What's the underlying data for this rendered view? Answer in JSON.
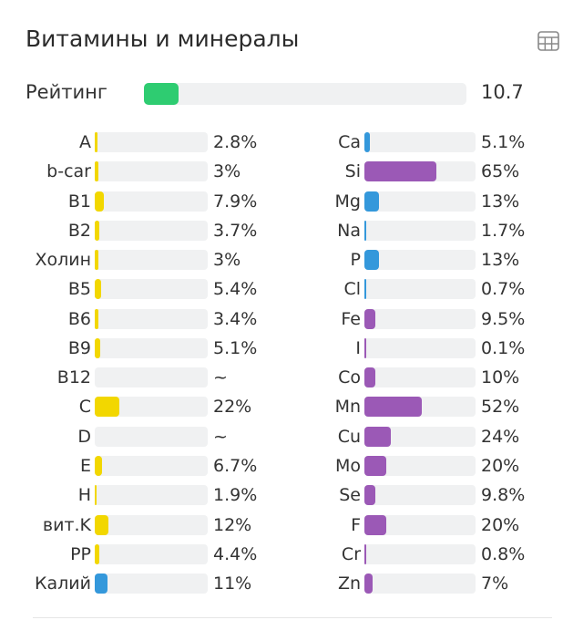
{
  "title": "Витамины и минералы",
  "rating": {
    "label": "Рейтинг",
    "value": "10.7",
    "fraction": 0.107,
    "color": "#2ecc71"
  },
  "colors": {
    "vitamin": "#f2d700",
    "blue": "#3498db",
    "mineral": "#9b59b6",
    "track": "#f0f1f2"
  },
  "vitamins": [
    {
      "label": "A",
      "value": "2.8%",
      "pct": 2.8,
      "color": "vitamin"
    },
    {
      "label": "b-car",
      "value": "3%",
      "pct": 3,
      "color": "vitamin"
    },
    {
      "label": "B1",
      "value": "7.9%",
      "pct": 7.9,
      "color": "vitamin"
    },
    {
      "label": "B2",
      "value": "3.7%",
      "pct": 3.7,
      "color": "vitamin"
    },
    {
      "label": "Холин",
      "value": "3%",
      "pct": 3,
      "color": "vitamin"
    },
    {
      "label": "B5",
      "value": "5.4%",
      "pct": 5.4,
      "color": "vitamin"
    },
    {
      "label": "B6",
      "value": "3.4%",
      "pct": 3.4,
      "color": "vitamin"
    },
    {
      "label": "B9",
      "value": "5.1%",
      "pct": 5.1,
      "color": "vitamin"
    },
    {
      "label": "B12",
      "value": "~",
      "pct": 0,
      "color": "vitamin"
    },
    {
      "label": "C",
      "value": "22%",
      "pct": 22,
      "color": "vitamin"
    },
    {
      "label": "D",
      "value": "~",
      "pct": 0,
      "color": "vitamin"
    },
    {
      "label": "E",
      "value": "6.7%",
      "pct": 6.7,
      "color": "vitamin"
    },
    {
      "label": "H",
      "value": "1.9%",
      "pct": 1.9,
      "color": "vitamin"
    },
    {
      "label": "вит.K",
      "value": "12%",
      "pct": 12,
      "color": "vitamin"
    },
    {
      "label": "PP",
      "value": "4.4%",
      "pct": 4.4,
      "color": "vitamin"
    },
    {
      "label": "Калий",
      "value": "11%",
      "pct": 11,
      "color": "blue"
    }
  ],
  "minerals": [
    {
      "label": "Ca",
      "value": "5.1%",
      "pct": 5.1,
      "color": "blue"
    },
    {
      "label": "Si",
      "value": "65%",
      "pct": 65,
      "color": "mineral"
    },
    {
      "label": "Mg",
      "value": "13%",
      "pct": 13,
      "color": "blue"
    },
    {
      "label": "Na",
      "value": "1.7%",
      "pct": 1.7,
      "color": "blue"
    },
    {
      "label": "P",
      "value": "13%",
      "pct": 13,
      "color": "blue"
    },
    {
      "label": "Cl",
      "value": "0.7%",
      "pct": 0.7,
      "color": "blue"
    },
    {
      "label": "Fe",
      "value": "9.5%",
      "pct": 9.5,
      "color": "mineral"
    },
    {
      "label": "I",
      "value": "0.1%",
      "pct": 0.1,
      "color": "mineral"
    },
    {
      "label": "Co",
      "value": "10%",
      "pct": 10,
      "color": "mineral"
    },
    {
      "label": "Mn",
      "value": "52%",
      "pct": 52,
      "color": "mineral"
    },
    {
      "label": "Cu",
      "value": "24%",
      "pct": 24,
      "color": "mineral"
    },
    {
      "label": "Mo",
      "value": "20%",
      "pct": 20,
      "color": "mineral"
    },
    {
      "label": "Se",
      "value": "9.8%",
      "pct": 9.8,
      "color": "mineral"
    },
    {
      "label": "F",
      "value": "20%",
      "pct": 20,
      "color": "mineral"
    },
    {
      "label": "Cr",
      "value": "0.8%",
      "pct": 0.8,
      "color": "mineral"
    },
    {
      "label": "Zn",
      "value": "7%",
      "pct": 7,
      "color": "mineral"
    }
  ]
}
